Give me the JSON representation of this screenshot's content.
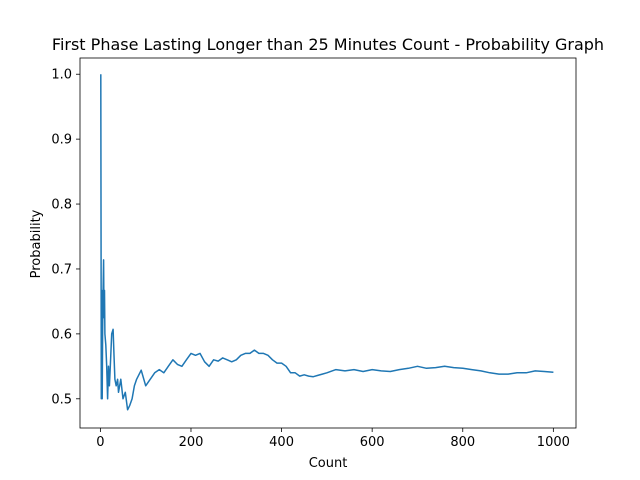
{
  "chart_data": {
    "type": "line",
    "title": "First Phase Lasting Longer than 25 Minutes Count - Probability Graph",
    "xlabel": "Count",
    "ylabel": "Probability",
    "xlim": [
      -45,
      1050
    ],
    "ylim": [
      0.455,
      1.025
    ],
    "xticks": [
      0,
      200,
      400,
      600,
      800,
      1000
    ],
    "yticks": [
      0.5,
      0.6,
      0.7,
      0.8,
      0.9,
      1.0
    ],
    "xtick_labels": [
      "0",
      "200",
      "400",
      "600",
      "800",
      "1000"
    ],
    "ytick_labels": [
      "0.5",
      "0.6",
      "0.7",
      "0.8",
      "0.9",
      "1.0"
    ],
    "grid": false,
    "series": [
      {
        "color": "#1f77b4",
        "x": [
          1,
          2,
          3,
          4,
          5,
          6,
          7,
          8,
          9,
          10,
          12,
          14,
          16,
          18,
          20,
          22,
          25,
          28,
          30,
          32,
          35,
          38,
          40,
          45,
          50,
          55,
          60,
          65,
          70,
          75,
          80,
          90,
          100,
          110,
          120,
          130,
          140,
          150,
          160,
          170,
          180,
          190,
          200,
          210,
          220,
          230,
          240,
          250,
          260,
          270,
          280,
          290,
          300,
          310,
          320,
          330,
          340,
          350,
          360,
          370,
          380,
          390,
          400,
          410,
          420,
          430,
          440,
          450,
          460,
          470,
          480,
          490,
          500,
          520,
          540,
          560,
          580,
          600,
          620,
          640,
          660,
          680,
          700,
          720,
          740,
          760,
          780,
          800,
          820,
          840,
          860,
          880,
          900,
          920,
          940,
          960,
          980,
          1000
        ],
        "y": [
          1.0,
          0.5,
          0.667,
          0.5,
          0.6,
          0.667,
          0.714,
          0.625,
          0.667,
          0.6,
          0.583,
          0.55,
          0.5,
          0.55,
          0.52,
          0.55,
          0.6,
          0.607,
          0.567,
          0.53,
          0.52,
          0.53,
          0.51,
          0.53,
          0.5,
          0.51,
          0.483,
          0.49,
          0.5,
          0.52,
          0.53,
          0.544,
          0.52,
          0.53,
          0.54,
          0.545,
          0.54,
          0.55,
          0.56,
          0.553,
          0.55,
          0.56,
          0.57,
          0.567,
          0.57,
          0.557,
          0.55,
          0.56,
          0.558,
          0.563,
          0.56,
          0.557,
          0.56,
          0.567,
          0.57,
          0.57,
          0.575,
          0.57,
          0.57,
          0.567,
          0.56,
          0.555,
          0.555,
          0.55,
          0.54,
          0.54,
          0.535,
          0.537,
          0.535,
          0.534,
          0.536,
          0.538,
          0.54,
          0.545,
          0.543,
          0.545,
          0.542,
          0.545,
          0.543,
          0.542,
          0.545,
          0.547,
          0.55,
          0.547,
          0.548,
          0.55,
          0.548,
          0.547,
          0.545,
          0.543,
          0.54,
          0.538,
          0.538,
          0.54,
          0.54,
          0.543,
          0.542,
          0.541
        ]
      }
    ]
  }
}
